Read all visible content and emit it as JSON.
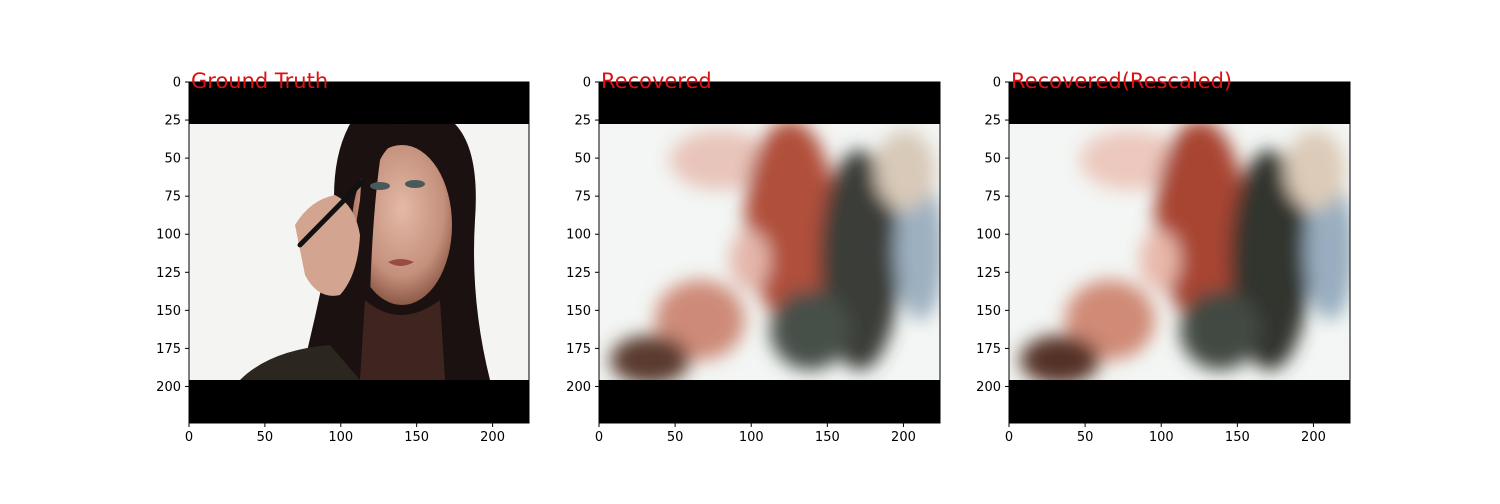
{
  "chart_data": [
    {
      "type": "image",
      "title": "Ground Truth",
      "title_color": "#dd1111",
      "xlim": [
        0,
        224
      ],
      "ylim": [
        224,
        0
      ],
      "xticks": [
        0,
        50,
        100,
        150,
        200
      ],
      "yticks": [
        0,
        25,
        50,
        75,
        100,
        125,
        150,
        175,
        200
      ],
      "letterbox_rows": [
        [
          0,
          27
        ],
        [
          195,
          224
        ]
      ],
      "content": "woman applying eye makeup against a white background"
    },
    {
      "type": "image",
      "title": "Recovered",
      "title_color": "#dd1111",
      "xlim": [
        0,
        224
      ],
      "ylim": [
        224,
        0
      ],
      "xticks": [
        0,
        50,
        100,
        150,
        200
      ],
      "yticks": [
        0,
        25,
        50,
        75,
        100,
        125,
        150,
        175,
        200
      ],
      "letterbox_rows": [
        [
          0,
          27
        ],
        [
          195,
          224
        ]
      ],
      "content": "blurred reconstruction, reddish-brown hair tones"
    },
    {
      "type": "image",
      "title": "Recovered(Rescaled)",
      "title_color": "#dd1111",
      "xlim": [
        0,
        224
      ],
      "ylim": [
        224,
        0
      ],
      "xticks": [
        0,
        50,
        100,
        150,
        200
      ],
      "yticks": [
        0,
        25,
        50,
        75,
        100,
        125,
        150,
        175,
        200
      ],
      "letterbox_rows": [
        [
          0,
          27
        ],
        [
          195,
          224
        ]
      ],
      "content": "rescaled blurred reconstruction"
    }
  ]
}
